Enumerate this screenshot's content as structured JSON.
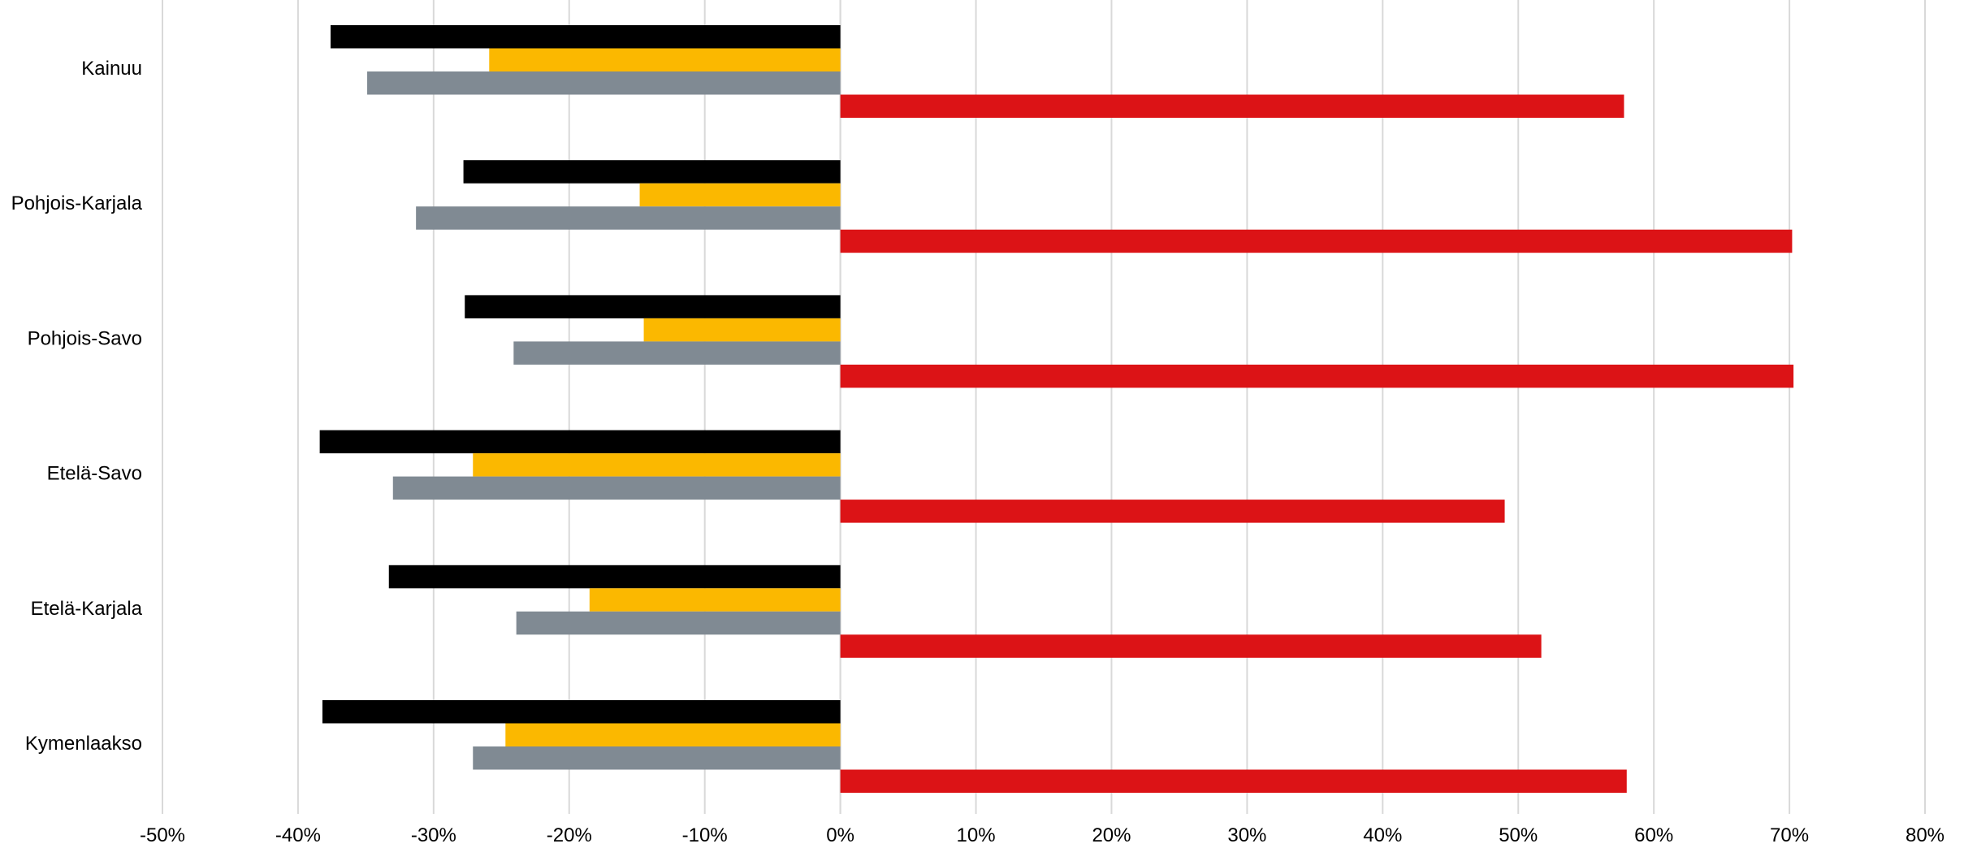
{
  "chart_data": {
    "type": "bar",
    "orientation": "horizontal",
    "categories": [
      "Kainuu",
      "Pohjois-Karjala",
      "Pohjois-Savo",
      "Etelä-Savo",
      "Etelä-Karjala",
      "Kymenlaakso"
    ],
    "series": [
      {
        "color": "#000000",
        "values": [
          -37.6,
          -27.8,
          -27.7,
          -38.4,
          -33.3,
          -38.2
        ]
      },
      {
        "color": "#FBB800",
        "values": [
          -25.9,
          -14.8,
          -14.5,
          -27.1,
          -18.5,
          -24.7
        ]
      },
      {
        "color": "#808A93",
        "values": [
          -34.9,
          -31.3,
          -24.1,
          -33.0,
          -23.9,
          -27.1
        ]
      },
      {
        "color": "#DC1316",
        "values": [
          57.8,
          70.2,
          70.3,
          49.0,
          51.7,
          58.0
        ]
      }
    ],
    "xlim": [
      -50,
      80
    ],
    "xticks": [
      "-50%",
      "-40%",
      "-30%",
      "-20%",
      "-10%",
      "0%",
      "10%",
      "20%",
      "30%",
      "40%",
      "50%",
      "60%",
      "70%",
      "80%"
    ],
    "title": "",
    "xlabel": "",
    "ylabel": "",
    "grid": "vertical",
    "legend": "none"
  }
}
